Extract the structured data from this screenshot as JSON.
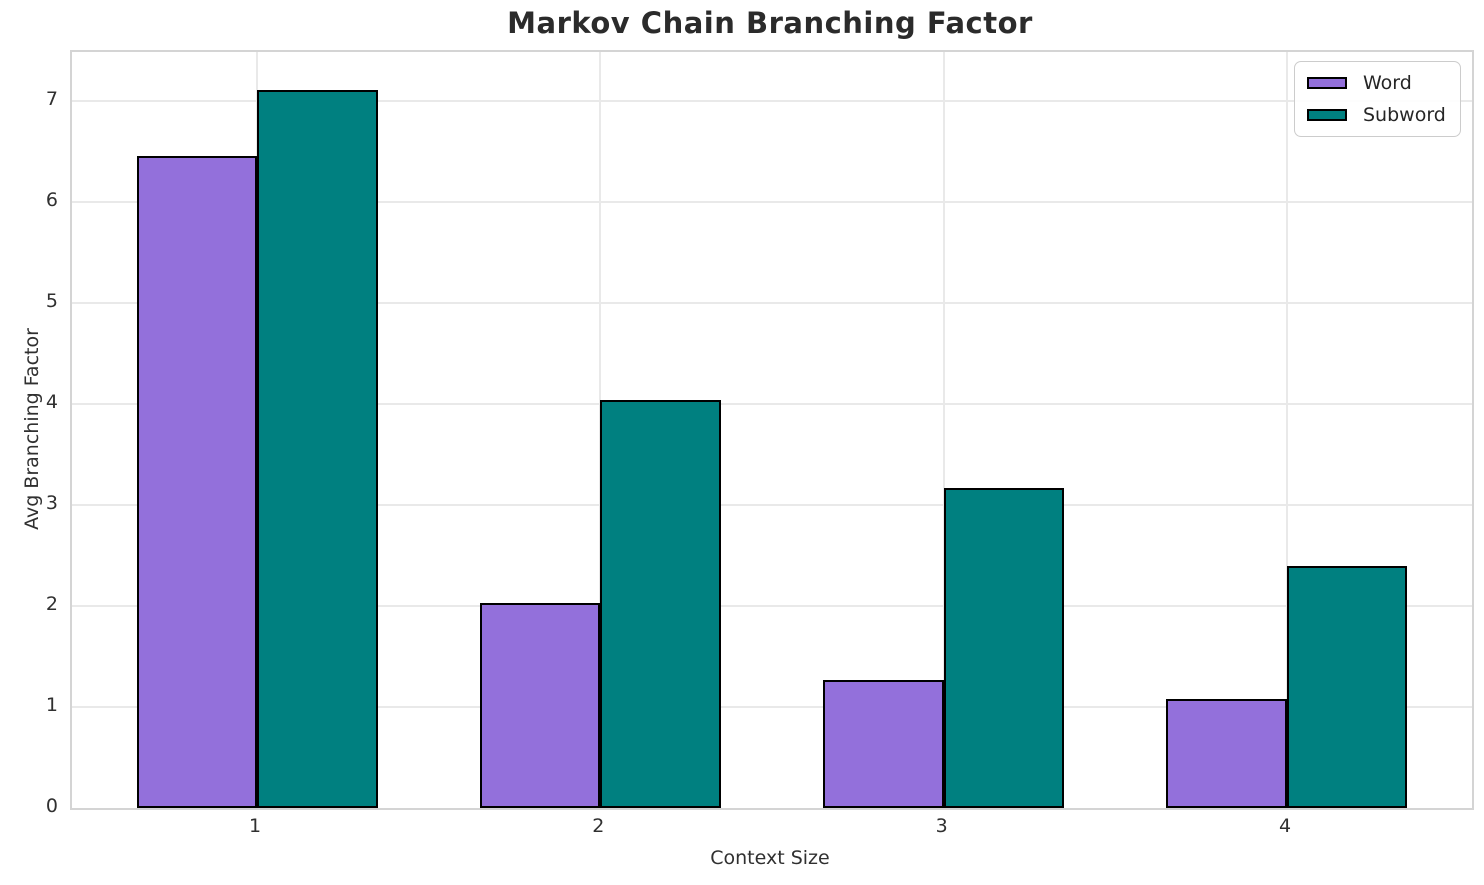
{
  "title": "Markov Chain Branching Factor",
  "chart_data": {
    "type": "bar",
    "title": "Markov Chain Branching Factor",
    "categories": [
      "1",
      "2",
      "3",
      "4"
    ],
    "series": [
      {
        "name": "Word",
        "color": "#9370DB",
        "values": [
          6.45,
          2.03,
          1.27,
          1.08
        ]
      },
      {
        "name": "Subword",
        "color": "#008080",
        "values": [
          7.1,
          4.04,
          3.17,
          2.39
        ]
      }
    ],
    "xlabel": "Context Size",
    "ylabel": "Avg Branching Factor",
    "ylim": [
      0,
      7.48
    ],
    "yticks": [
      0,
      1,
      2,
      3,
      4,
      5,
      6,
      7
    ],
    "grid": true,
    "bar_edge_color": "#000000",
    "legend": {
      "position": "upper-right",
      "entries": [
        "Word",
        "Subword"
      ]
    }
  }
}
